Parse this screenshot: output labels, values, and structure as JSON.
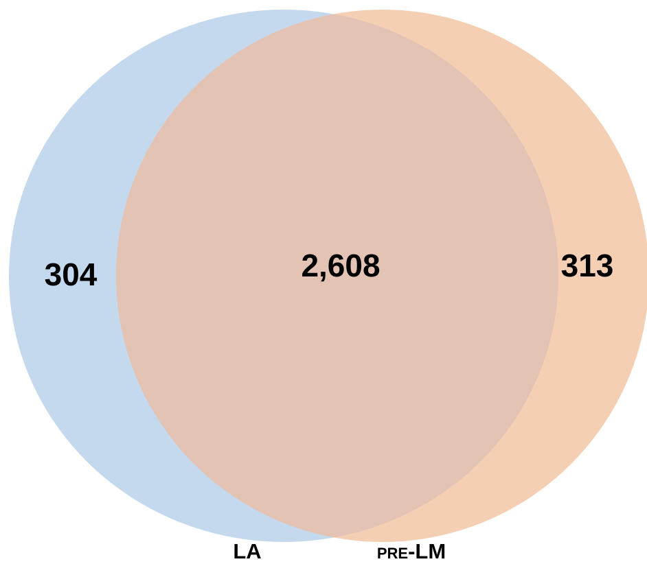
{
  "venn": {
    "sets": [
      {
        "id": "left",
        "label": "LA",
        "color": "#c5d9ee"
      },
      {
        "id": "right",
        "label_prefix": "PRE",
        "label_suffix": "-LM",
        "color": "#f5cfb4"
      }
    ],
    "overlap_color": "#e2c3b4",
    "regions": {
      "left_only": "304",
      "intersection": "2,608",
      "right_only": "313"
    }
  }
}
